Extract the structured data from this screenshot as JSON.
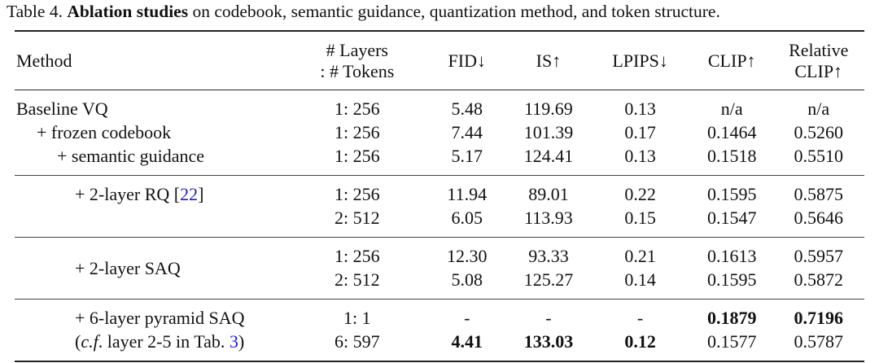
{
  "caption": {
    "prefix": "Table 4. ",
    "bold": "Ablation studies",
    "rest": " on codebook, semantic guidance, quantization method, and token structure."
  },
  "headers": {
    "method": "Method",
    "layers_1": "# Layers",
    "layers_2": ": # Tokens",
    "fid": "FID↓",
    "is": "IS↑",
    "lpips": "LPIPS↓",
    "clip": "CLIP↑",
    "rel_1": "Relative",
    "rel_2": "CLIP↑"
  },
  "groups": [
    {
      "rows": [
        {
          "method": "Baseline VQ",
          "layers": "1: 256",
          "fid": "5.48",
          "is": "119.69",
          "lpips": "0.13",
          "clip": "n/a",
          "rel": "n/a"
        },
        {
          "method": "+ frozen codebook",
          "layers": "1: 256",
          "fid": "7.44",
          "is": "101.39",
          "lpips": "0.17",
          "clip": "0.1464",
          "rel": "0.5260"
        },
        {
          "method": "+ semantic guidance",
          "layers": "1: 256",
          "fid": "5.17",
          "is": "124.41",
          "lpips": "0.13",
          "clip": "0.1518",
          "rel": "0.5510"
        }
      ]
    },
    {
      "rows": [
        {
          "method": "+ 2-layer RQ [",
          "ref": "22",
          "method_end": "]",
          "layers": "1: 256",
          "fid": "11.94",
          "is": "89.01",
          "lpips": "0.22",
          "clip": "0.1595",
          "rel": "0.5875"
        },
        {
          "layers": "2: 512",
          "fid": "6.05",
          "is": "113.93",
          "lpips": "0.15",
          "clip": "0.1547",
          "rel": "0.5646"
        }
      ]
    },
    {
      "rows": [
        {
          "layers": "1: 256",
          "fid": "12.30",
          "is": "93.33",
          "lpips": "0.21",
          "clip": "0.1613",
          "rel": "0.5957"
        },
        {
          "method": "+ 2-layer SAQ",
          "layers": "2: 512",
          "fid": "5.08",
          "is": "125.27",
          "lpips": "0.14",
          "clip": "0.1595",
          "rel": "0.5872"
        }
      ]
    },
    {
      "rows": [
        {
          "method": "+ 6-layer pyramid SAQ",
          "layers": "1: 1",
          "fid": "-",
          "is": "-",
          "lpips": "-",
          "clip": "0.1879",
          "rel": "0.7196"
        },
        {
          "method_italic": "c.f",
          "method": ". layer 2-5 in Tab. ",
          "ref": "3",
          "layers": "6: 597",
          "fid": "4.41",
          "is": "133.03",
          "lpips": "0.12",
          "clip": "0.1577",
          "rel": "0.5787"
        }
      ]
    }
  ],
  "colors": {
    "link": "#1a1ad6"
  }
}
